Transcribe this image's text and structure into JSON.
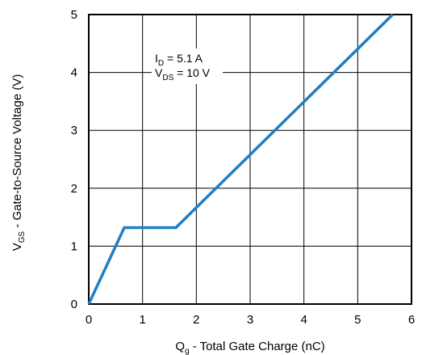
{
  "chart_data": {
    "type": "line",
    "xlabel": {
      "main": "Q",
      "sub": "g",
      "rest": " - Total Gate Charge (nC)"
    },
    "ylabel": {
      "main": "V",
      "sub": "GS",
      "rest": " - Gate-to-Source Voltage (V)"
    },
    "xlim": [
      0,
      6
    ],
    "ylim": [
      0,
      5
    ],
    "x_ticks": [
      0,
      1,
      2,
      3,
      4,
      5,
      6
    ],
    "y_ticks": [
      0,
      1,
      2,
      3,
      4,
      5
    ],
    "grid": true,
    "line_color": "#1f7fc4",
    "annotations": [
      {
        "main": "I",
        "sub": "D",
        "rest": " = 5.1 A"
      },
      {
        "main": "V",
        "sub": "DS",
        "rest": " = 10 V"
      }
    ],
    "series": [
      {
        "x": [
          0,
          0.66,
          1.62,
          5.65
        ],
        "y": [
          0,
          1.32,
          1.32,
          5.0
        ]
      }
    ]
  }
}
